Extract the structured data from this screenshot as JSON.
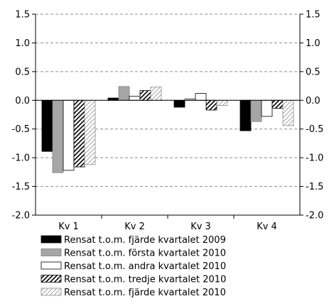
{
  "chart_data": {
    "type": "bar",
    "title": "",
    "xlabel": "",
    "ylabel": "",
    "ylim": [
      -2.0,
      1.5
    ],
    "yticks": [
      "-2.0",
      "-1.5",
      "-1.0",
      "-0.5",
      "0.0",
      "0.5",
      "1.0",
      "1.5"
    ],
    "ytick_values": [
      -2.0,
      -1.5,
      -1.0,
      -0.5,
      0.0,
      0.5,
      1.0,
      1.5
    ],
    "dual_y_axis": true,
    "grid": "horizontal dashed",
    "legend_position": "bottom",
    "categories": [
      "Kv 1",
      "Kv 2",
      "Kv 3",
      "Kv 4"
    ],
    "series": [
      {
        "name": "Rensat t.o.m. fjärde kvartalet 2009",
        "fill": "#000000",
        "pattern": "solid",
        "values": [
          -0.89,
          0.04,
          -0.12,
          -0.53
        ]
      },
      {
        "name": "Rensat t.o.m. första kvartalet 2010",
        "fill": "#a6a6a6",
        "pattern": "solid",
        "values": [
          -1.26,
          0.24,
          0.03,
          -0.37
        ]
      },
      {
        "name": "Rensat t.o.m. andra kvartalet 2010",
        "fill": "#ffffff",
        "pattern": "solid",
        "values": [
          -1.22,
          0.07,
          0.12,
          -0.28
        ]
      },
      {
        "name": "Rensat t.o.m. tredje kvartalet 2010",
        "fill": "#ffffff",
        "pattern": "diagonal-dense",
        "values": [
          -1.16,
          0.17,
          -0.17,
          -0.14
        ]
      },
      {
        "name": "Rensat t.o.m. fjärde kvartalet 2010",
        "fill": "#ffffff",
        "pattern": "diagonal-light",
        "values": [
          -1.12,
          0.23,
          -0.09,
          -0.44
        ]
      }
    ]
  }
}
